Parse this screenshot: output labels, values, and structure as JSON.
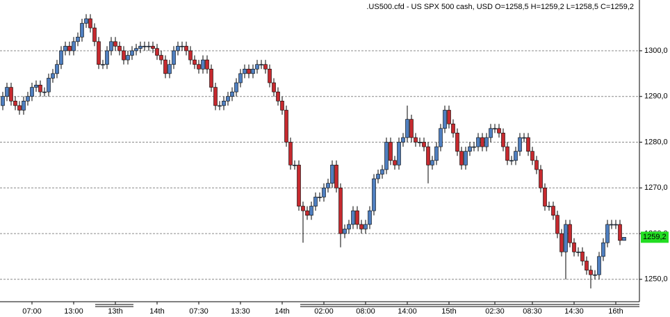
{
  "chart_data": {
    "type": "candlestick",
    "title": ".US500.cfd - US SPX 500 cash, USD O=1258,5 H=1259,2 L=1258,5 C=1259,2",
    "up_color": "#4f7fc0",
    "down_color": "#c62a2f",
    "grid": true,
    "ylim": [
      1245.1,
      1311.1
    ],
    "yticks": [
      {
        "value": 1250,
        "label": "1250,0"
      },
      {
        "value": 1260,
        "label": "1260,0"
      },
      {
        "value": 1270,
        "label": "1270,0"
      },
      {
        "value": 1280,
        "label": "1280,0"
      },
      {
        "value": 1290,
        "label": "1290,0"
      },
      {
        "value": 1300,
        "label": "1300,0"
      }
    ],
    "last_label": {
      "value": 1259.2,
      "label": "1259,2"
    },
    "categories": [
      null,
      null,
      null,
      null,
      null,
      null,
      null,
      "07:00",
      null,
      null,
      null,
      null,
      null,
      null,
      null,
      null,
      null,
      "13:00",
      null,
      null,
      null,
      null,
      null,
      null,
      null,
      null,
      null,
      "13th",
      null,
      null,
      null,
      null,
      null,
      null,
      null,
      null,
      null,
      "14th",
      null,
      null,
      null,
      null,
      null,
      null,
      null,
      null,
      null,
      "07:30",
      null,
      null,
      null,
      null,
      null,
      null,
      null,
      null,
      null,
      "13:30",
      null,
      null,
      null,
      null,
      null,
      null,
      null,
      null,
      null,
      "14th",
      null,
      null,
      null,
      null,
      null,
      null,
      null,
      null,
      null,
      "02:00",
      null,
      null,
      null,
      null,
      null,
      null,
      null,
      null,
      null,
      "08:00",
      null,
      null,
      null,
      null,
      null,
      null,
      null,
      null,
      null,
      "14:00",
      null,
      null,
      null,
      null,
      null,
      null,
      null,
      null,
      null,
      "15th",
      null,
      null,
      null,
      null,
      null,
      null,
      null,
      null,
      null,
      null,
      "02:30",
      null,
      null,
      null,
      null,
      null,
      null,
      null,
      null,
      "08:30",
      null,
      null,
      null,
      null,
      null,
      null,
      null,
      null,
      null,
      "14:30",
      null,
      null,
      null,
      null,
      null,
      null,
      null,
      null,
      null,
      "16th",
      null,
      null
    ],
    "open": [
      1288,
      1290,
      1292,
      1289,
      1288,
      1287,
      1289,
      1290,
      1292,
      1292.5,
      1291,
      1291,
      1294,
      1295,
      1297,
      1300,
      1301,
      1300,
      1302,
      1303,
      1306,
      1307,
      1305,
      1302,
      1297,
      1297,
      1300,
      1302,
      1301,
      1300,
      1298,
      1299,
      1300,
      1300.5,
      1301,
      1301,
      1301,
      1300.5,
      1299,
      1298,
      1295,
      1297,
      1300,
      1301,
      1301,
      1300,
      1298,
      1297,
      1296,
      1298,
      1296,
      1292,
      1288,
      1288,
      1289,
      1290,
      1291,
      1293,
      1295,
      1296,
      1295,
      1296,
      1297,
      1297,
      1296,
      1293,
      1291,
      1289,
      1287,
      1280,
      1275,
      1275,
      1266,
      1265,
      1264,
      1266,
      1268,
      1268,
      1270,
      1271,
      1275,
      1270,
      1260,
      1261,
      1262,
      1265,
      1262,
      1261,
      1262,
      1265,
      1272,
      1273,
      1274,
      1280,
      1276,
      1275,
      1280,
      1281,
      1285,
      1281,
      1280,
      1280,
      1279,
      1275,
      1276,
      1279,
      1283,
      1287,
      1284,
      1282,
      1278,
      1275,
      1278,
      1279,
      1279,
      1281,
      1279,
      1281,
      1283,
      1283,
      1282,
      1279,
      1276,
      1276,
      1278,
      1281,
      1281,
      1278,
      1276,
      1274,
      1270,
      1266,
      1266,
      1264,
      1260,
      1256,
      1262,
      1258,
      1256,
      1256,
      1254,
      1252,
      1251,
      1251,
      1255,
      1258,
      1262,
      1262,
      1262,
      1258.5
    ],
    "high": [
      1291,
      1293,
      1293,
      1290,
      1289,
      1290,
      1291,
      1293,
      1293.5,
      1293.5,
      1292,
      1295,
      1296,
      1298,
      1301,
      1302,
      1302,
      1303,
      1304,
      1307,
      1308,
      1308,
      1306,
      1303,
      1298,
      1301,
      1303,
      1303,
      1302,
      1301,
      1300,
      1301,
      1301.5,
      1302,
      1302,
      1302,
      1302,
      1301.5,
      1300,
      1299,
      1298,
      1301,
      1302,
      1302,
      1302,
      1301,
      1299,
      1298,
      1299,
      1299,
      1297,
      1293,
      1289,
      1290,
      1291,
      1292,
      1294,
      1296,
      1297,
      1297,
      1297,
      1298,
      1298,
      1298,
      1297,
      1294,
      1292,
      1290,
      1288,
      1281,
      1276,
      1276,
      1267,
      1266,
      1267,
      1269,
      1269,
      1271,
      1272,
      1276,
      1276,
      1271,
      1262,
      1263,
      1266,
      1266,
      1263,
      1263,
      1266,
      1273,
      1274,
      1275,
      1281,
      1281,
      1277,
      1281,
      1282,
      1288,
      1286,
      1282,
      1281,
      1281,
      1280,
      1277,
      1280,
      1284,
      1288,
      1288,
      1285,
      1283,
      1279,
      1279,
      1280,
      1280,
      1282,
      1282,
      1282,
      1284,
      1284,
      1284,
      1283,
      1280,
      1277,
      1279,
      1282,
      1282,
      1282,
      1279,
      1277,
      1275,
      1271,
      1267,
      1267,
      1265,
      1261,
      1263,
      1263,
      1259,
      1257,
      1257,
      1255,
      1253,
      1252,
      1256,
      1259,
      1263,
      1263,
      1263,
      1263,
      1259.2
    ],
    "low": [
      1287,
      1289,
      1288,
      1287,
      1286,
      1286,
      1288,
      1289,
      1291,
      1290,
      1290,
      1290,
      1293,
      1294,
      1296,
      1299,
      1299,
      1299,
      1301,
      1302,
      1305,
      1304,
      1301,
      1296,
      1296,
      1296,
      1299,
      1300,
      1299,
      1297,
      1297,
      1298,
      1299,
      1299.5,
      1300,
      1300,
      1299.5,
      1298,
      1297,
      1294,
      1294,
      1296,
      1299,
      1300,
      1299,
      1297,
      1296,
      1295,
      1295,
      1295,
      1291,
      1287,
      1287,
      1287,
      1288,
      1289,
      1290,
      1292,
      1294,
      1294,
      1294,
      1295,
      1296,
      1295,
      1292,
      1290,
      1288,
      1286,
      1279,
      1274,
      1274,
      1265,
      1258,
      1263,
      1263,
      1265,
      1267,
      1267,
      1269,
      1270,
      1269,
      1257,
      1259,
      1260,
      1261,
      1261,
      1260,
      1260,
      1261,
      1264,
      1271,
      1272,
      1273,
      1275,
      1274,
      1274,
      1279,
      1280,
      1280,
      1279,
      1279,
      1278,
      1271,
      1274,
      1275,
      1278,
      1282,
      1283,
      1281,
      1277,
      1274,
      1274,
      1277,
      1278,
      1278,
      1278,
      1278,
      1280,
      1282,
      1281,
      1278,
      1275,
      1275,
      1275,
      1277,
      1280,
      1277,
      1275,
      1273,
      1269,
      1265,
      1265,
      1263,
      1259,
      1255,
      1250,
      1257,
      1255,
      1255,
      1253,
      1251,
      1248,
      1250,
      1250,
      1254,
      1257,
      1261,
      1261,
      1257.5,
      1258.5
    ],
    "close": [
      1290,
      1292,
      1289,
      1288,
      1287,
      1289,
      1290,
      1292,
      1292.5,
      1291,
      1291,
      1294,
      1295,
      1297,
      1300,
      1301,
      1300,
      1302,
      1303,
      1306,
      1307,
      1305,
      1302,
      1297,
      1297,
      1300,
      1302,
      1301,
      1300,
      1298,
      1299,
      1300,
      1300.5,
      1301,
      1301,
      1301,
      1300.5,
      1299,
      1298,
      1295,
      1297,
      1300,
      1301,
      1301,
      1300,
      1298,
      1297,
      1296,
      1298,
      1296,
      1292,
      1288,
      1288,
      1289,
      1290,
      1291,
      1293,
      1295,
      1296,
      1295,
      1296,
      1297,
      1297,
      1296,
      1293,
      1291,
      1289,
      1287,
      1280,
      1275,
      1275,
      1266,
      1265,
      1264,
      1266,
      1268,
      1268,
      1270,
      1271,
      1275,
      1270,
      1260,
      1261,
      1262,
      1265,
      1262,
      1261,
      1262,
      1265,
      1272,
      1273,
      1274,
      1280,
      1276,
      1275,
      1280,
      1281,
      1285,
      1281,
      1280,
      1280,
      1279,
      1275,
      1276,
      1279,
      1283,
      1287,
      1284,
      1282,
      1278,
      1275,
      1278,
      1279,
      1279,
      1281,
      1279,
      1281,
      1283,
      1283,
      1282,
      1279,
      1276,
      1276,
      1278,
      1281,
      1281,
      1278,
      1276,
      1274,
      1270,
      1266,
      1266,
      1264,
      1260,
      1256,
      1262,
      1258,
      1256,
      1256,
      1254,
      1252,
      1251,
      1251,
      1255,
      1258,
      1262,
      1262,
      1262,
      1258.5,
      1259.2
    ]
  }
}
